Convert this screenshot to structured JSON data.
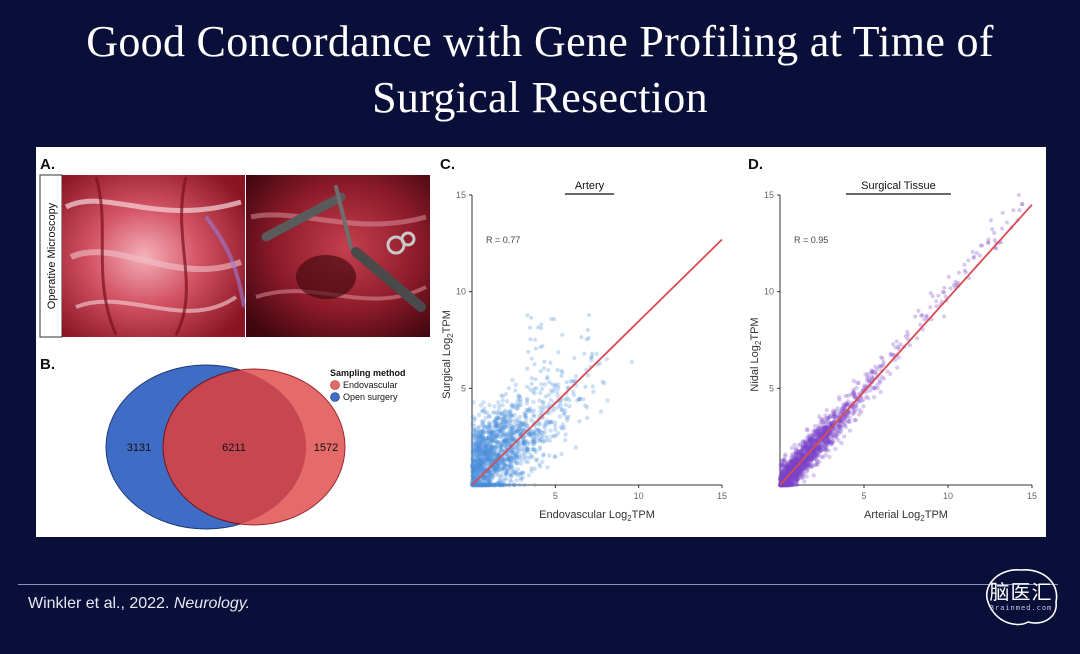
{
  "slide": {
    "title_line1": "Good Concordance with Gene Profiling at Time of",
    "title_line2": "Surgical Resection",
    "citation_authors": "Winkler et al., 2022. ",
    "citation_journal": "Neurology."
  },
  "logo": {
    "main": "脑医汇",
    "sub": "Brainmed.com"
  },
  "panel_a": {
    "label": "A.",
    "side_label": "Operative Microscopy"
  },
  "panel_b": {
    "label": "B.",
    "legend_title": "Sampling method",
    "legend_items": [
      "Endovascular",
      "Open surgery"
    ],
    "colors": {
      "endovascular": "#e56a6a",
      "open_surgery": "#3f6cc4",
      "overlap": "#c74651"
    }
  },
  "chart_data": [
    {
      "type": "venn",
      "title": "",
      "sets": [
        "Open surgery",
        "Endovascular"
      ],
      "regions": {
        "open_surgery_only": 3131,
        "both": 6211,
        "endovascular_only": 1572
      }
    },
    {
      "type": "scatter",
      "panel_label": "C.",
      "title": "Artery",
      "xlabel": "Endovascular Log",
      "ylabel": "Surgical Log",
      "axis_sub": "2",
      "axis_suffix": "TPM",
      "xlim": [
        0,
        15
      ],
      "ylim": [
        0,
        15
      ],
      "xticks": [
        "5",
        "10",
        "15"
      ],
      "yticks": [
        "5",
        "10",
        "15"
      ],
      "annotation": "R = 0.77",
      "r": 0.77,
      "point_color": "#4a8fdb",
      "line_color": "#d94a52"
    },
    {
      "type": "scatter",
      "panel_label": "D.",
      "title": "Surgical Tissue",
      "xlabel": "Arterial Log",
      "ylabel": "Nidal Log",
      "axis_sub": "2",
      "axis_suffix": "TPM",
      "xlim": [
        0,
        15
      ],
      "ylim": [
        0,
        15
      ],
      "xticks": [
        "5",
        "10",
        "15"
      ],
      "yticks": [
        "5",
        "10",
        "15"
      ],
      "annotation": "R = 0.95",
      "r": 0.95,
      "point_color": "#7a44c8",
      "line_color": "#d94a52"
    }
  ]
}
